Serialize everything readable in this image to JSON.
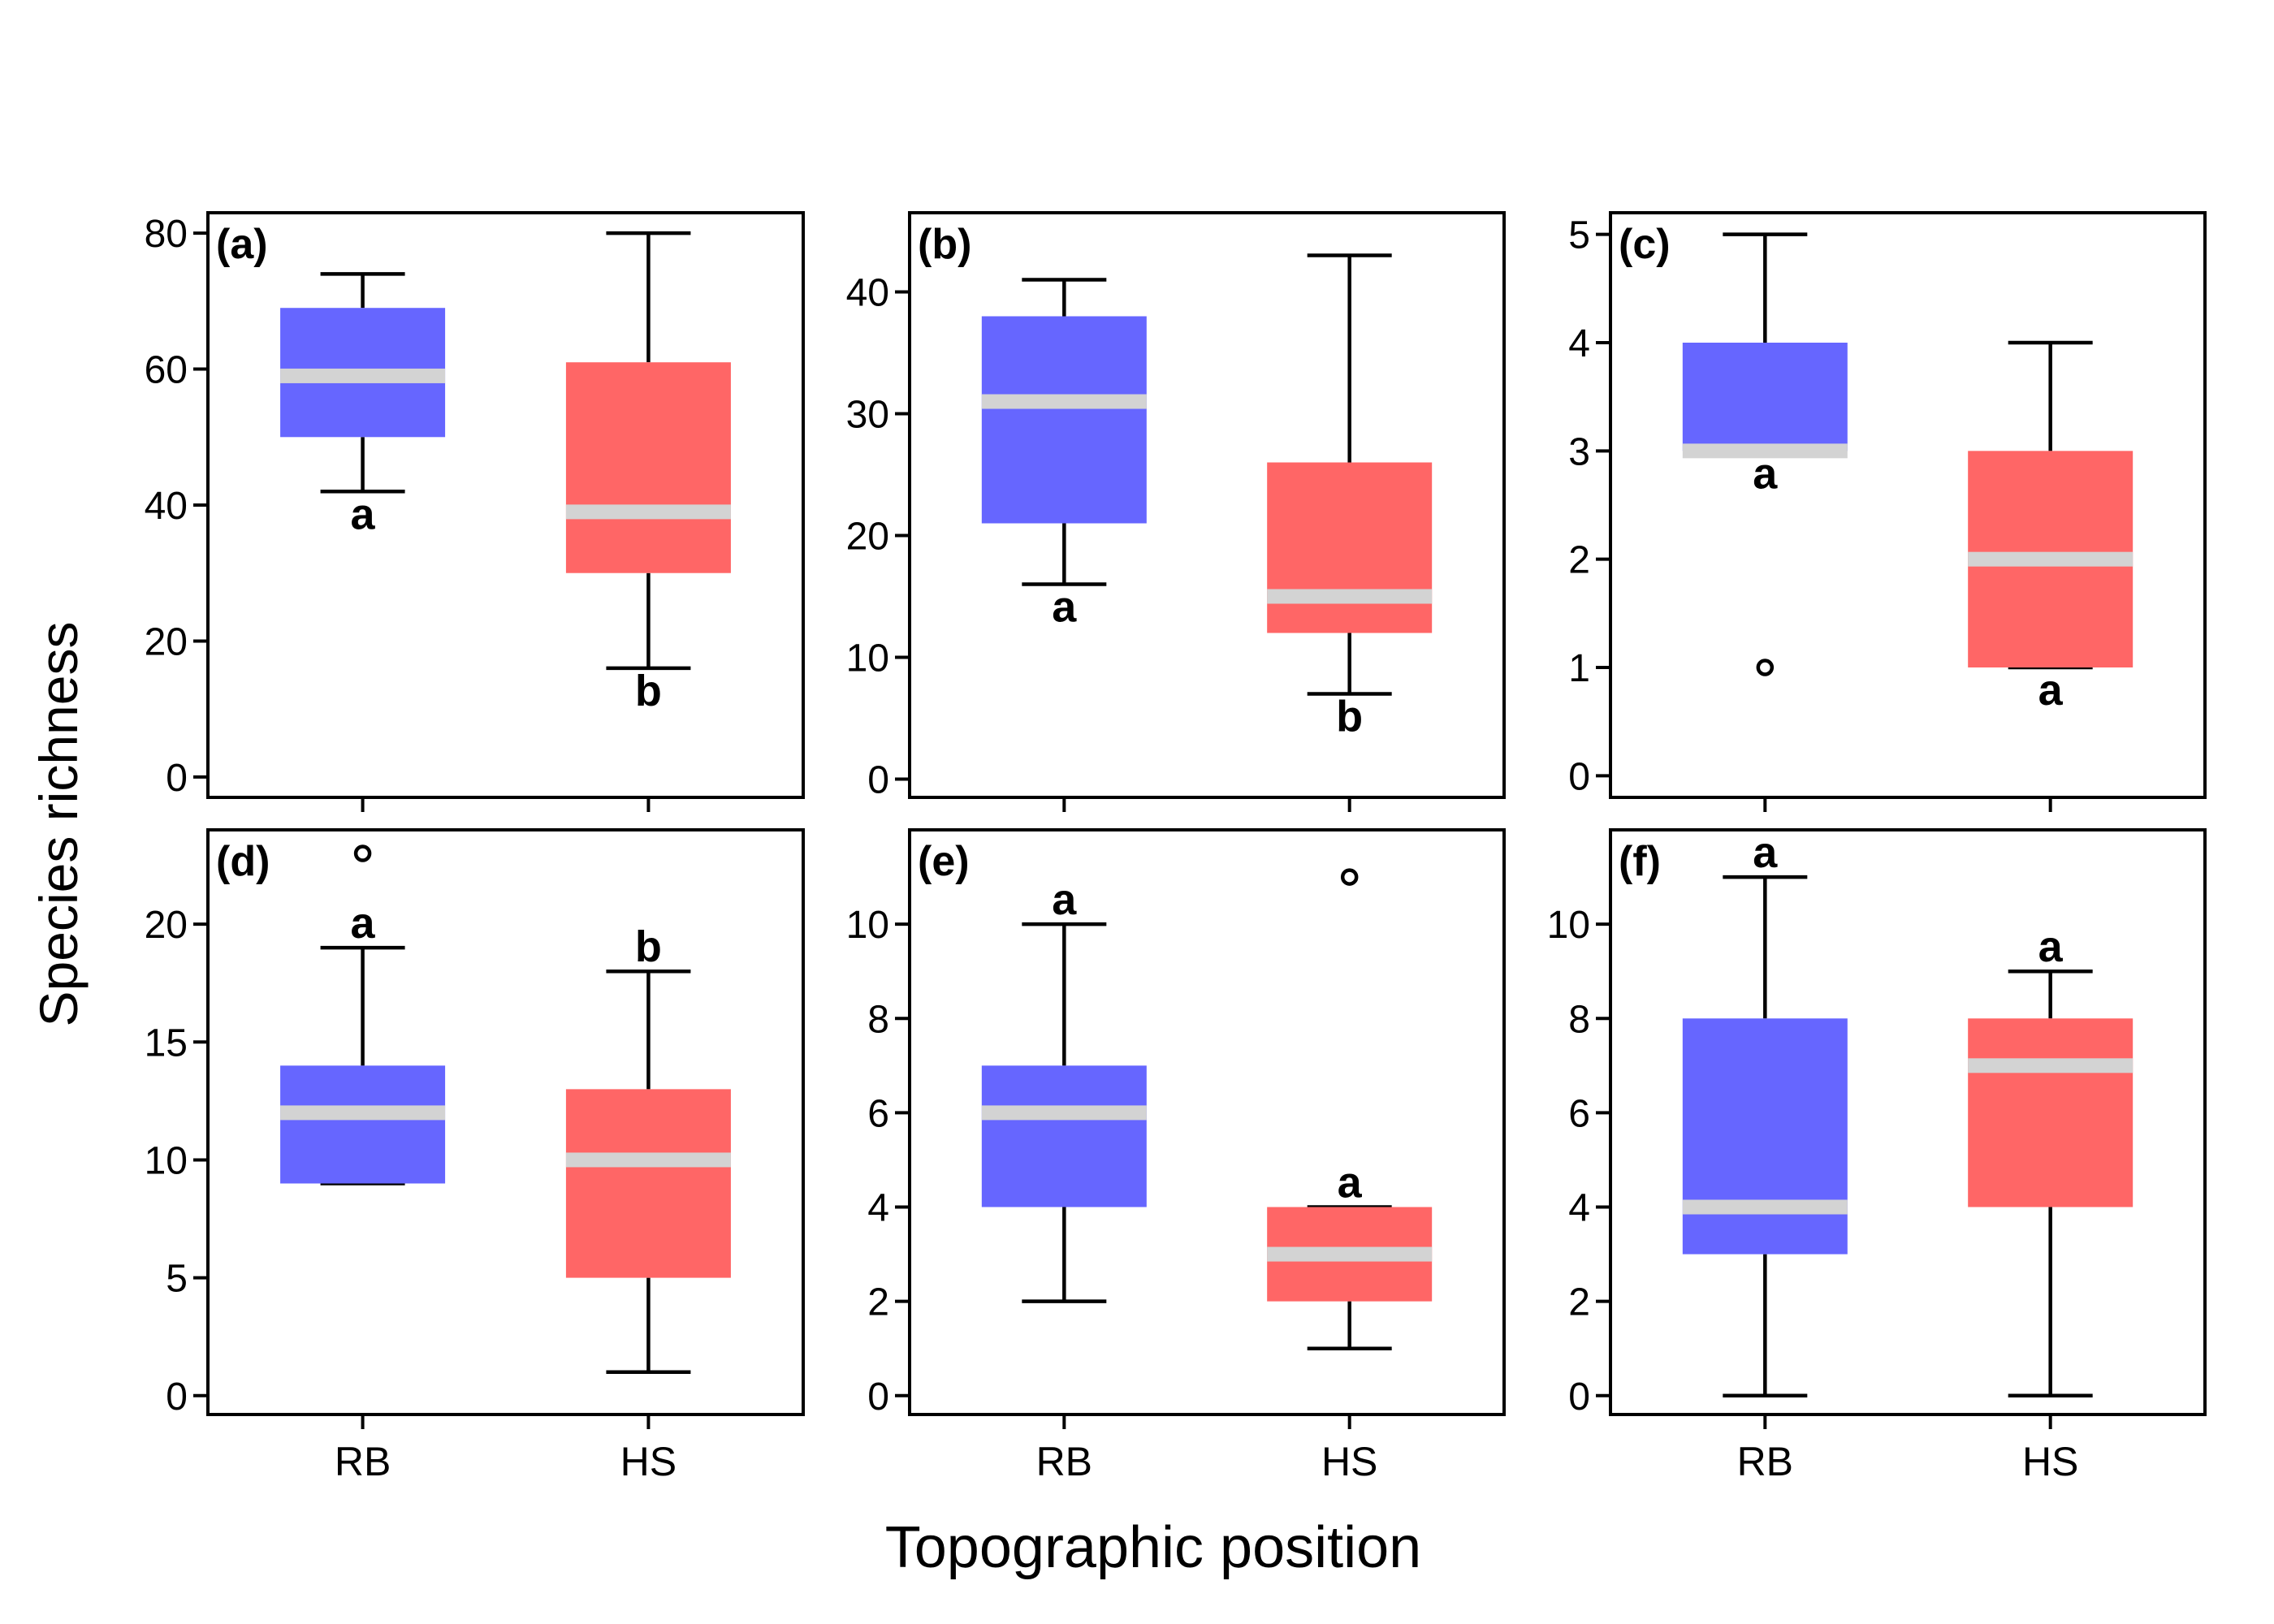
{
  "chart_data": {
    "type": "box",
    "ylabel": "Species richness",
    "xlabel": "Topographic position",
    "categories": [
      "RB",
      "HS"
    ],
    "colors": {
      "RB": "#6666ff",
      "HS": "#ff6666",
      "median": "#d3d3d3"
    },
    "panels": [
      {
        "label": "(a)",
        "ylim": [
          -3,
          83
        ],
        "yticks": [
          0,
          20,
          40,
          60,
          80
        ],
        "boxes": [
          {
            "category": "RB",
            "min": 42,
            "q1": 50,
            "median": 59,
            "q3": 69,
            "max": 74,
            "outliers": [],
            "letter": "a"
          },
          {
            "category": "HS",
            "min": 16,
            "q1": 30,
            "median": 39,
            "q3": 61,
            "max": 80,
            "outliers": [],
            "letter": "b"
          }
        ]
      },
      {
        "label": "(b)",
        "ylim": [
          -1.5,
          46.5
        ],
        "yticks": [
          0,
          10,
          20,
          30,
          40
        ],
        "boxes": [
          {
            "category": "RB",
            "min": 16,
            "q1": 21,
            "median": 31,
            "q3": 38,
            "max": 41,
            "outliers": [],
            "letter": "a"
          },
          {
            "category": "HS",
            "min": 7,
            "q1": 12,
            "median": 15,
            "q3": 26,
            "max": 43,
            "outliers": [],
            "letter": "b"
          }
        ]
      },
      {
        "label": "(c)",
        "ylim": [
          -0.2,
          5.2
        ],
        "yticks": [
          0,
          1,
          2,
          3,
          4,
          5
        ],
        "boxes": [
          {
            "category": "RB",
            "min": 3,
            "q1": 3,
            "median": 3,
            "q3": 4,
            "max": 5,
            "outliers": [
              1
            ],
            "letter": "a"
          },
          {
            "category": "HS",
            "min": 1,
            "q1": 1,
            "median": 2,
            "q3": 3,
            "max": 4,
            "outliers": [],
            "letter": "a"
          }
        ]
      },
      {
        "label": "(d)",
        "ylim": [
          -0.8,
          24.0
        ],
        "yticks": [
          0,
          5,
          10,
          15,
          20
        ],
        "boxes": [
          {
            "category": "RB",
            "min": 9,
            "q1": 9,
            "median": 12,
            "q3": 14,
            "max": 19,
            "outliers": [
              23
            ],
            "letter": "a"
          },
          {
            "category": "HS",
            "min": 1,
            "q1": 5,
            "median": 10,
            "q3": 13,
            "max": 18,
            "outliers": [],
            "letter": "b"
          }
        ]
      },
      {
        "label": "(e)",
        "ylim": [
          -0.4,
          12.0
        ],
        "yticks": [
          0,
          2,
          4,
          6,
          8,
          10
        ],
        "boxes": [
          {
            "category": "RB",
            "min": 2,
            "q1": 4,
            "median": 6,
            "q3": 7,
            "max": 10,
            "outliers": [],
            "letter": "a"
          },
          {
            "category": "HS",
            "min": 1,
            "q1": 2,
            "median": 3,
            "q3": 4,
            "max": 4,
            "outliers": [
              11
            ],
            "letter": "a"
          }
        ]
      },
      {
        "label": "(f)",
        "ylim": [
          -0.4,
          12.0
        ],
        "yticks": [
          0,
          2,
          4,
          6,
          8,
          10
        ],
        "boxes": [
          {
            "category": "RB",
            "min": 0,
            "q1": 3,
            "median": 4,
            "q3": 8,
            "max": 11,
            "outliers": [],
            "letter": "a"
          },
          {
            "category": "HS",
            "min": 0,
            "q1": 4,
            "median": 7,
            "q3": 8,
            "max": 9,
            "outliers": [],
            "letter": "a"
          }
        ]
      }
    ]
  }
}
